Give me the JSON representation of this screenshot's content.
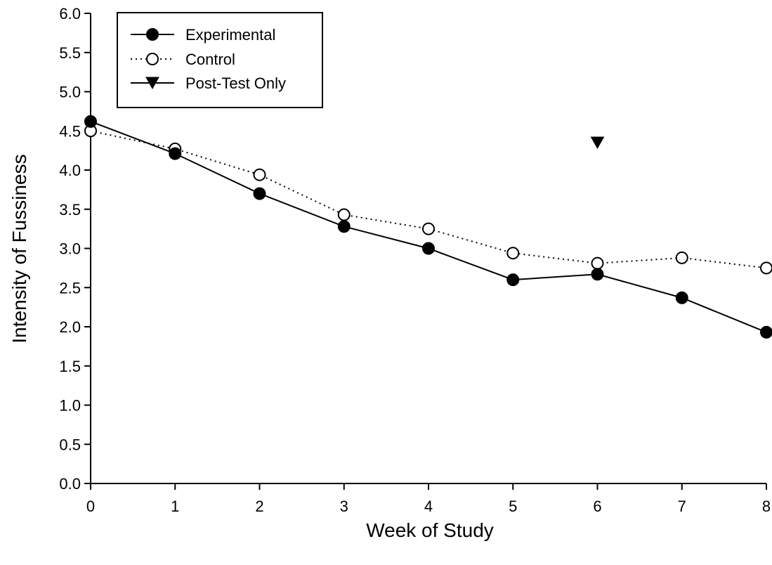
{
  "chart_data": {
    "type": "line",
    "xlabel": "Week of Study",
    "ylabel": "Intensity of Fussiness",
    "xlim": [
      0,
      8
    ],
    "ylim": [
      0,
      6
    ],
    "x_ticks": [
      "0",
      "1",
      "2",
      "3",
      "4",
      "5",
      "6",
      "7",
      "8"
    ],
    "y_ticks": [
      "0.0",
      "0.5",
      "1.0",
      "1.5",
      "2.0",
      "2.5",
      "3.0",
      "3.5",
      "4.0",
      "4.5",
      "5.0",
      "5.5",
      "6.0"
    ],
    "grid": false,
    "legend_position": "top-left",
    "series": [
      {
        "name": "Experimental",
        "marker": "filled-circle",
        "line": "solid",
        "color": "#000000",
        "x": [
          0,
          1,
          2,
          3,
          4,
          5,
          6,
          7,
          8
        ],
        "values": [
          4.62,
          4.21,
          3.7,
          3.28,
          3.0,
          2.6,
          2.67,
          2.37,
          1.93
        ]
      },
      {
        "name": "Control",
        "marker": "open-circle",
        "line": "dotted",
        "color": "#000000",
        "x": [
          0,
          1,
          2,
          3,
          4,
          5,
          6,
          7,
          8
        ],
        "values": [
          4.5,
          4.27,
          3.94,
          3.43,
          3.25,
          2.94,
          2.81,
          2.88,
          2.75
        ]
      },
      {
        "name": "Post-Test Only",
        "marker": "filled-triangle-down",
        "line": "solid",
        "color": "#000000",
        "x": [
          6
        ],
        "values": [
          4.35
        ]
      }
    ]
  }
}
